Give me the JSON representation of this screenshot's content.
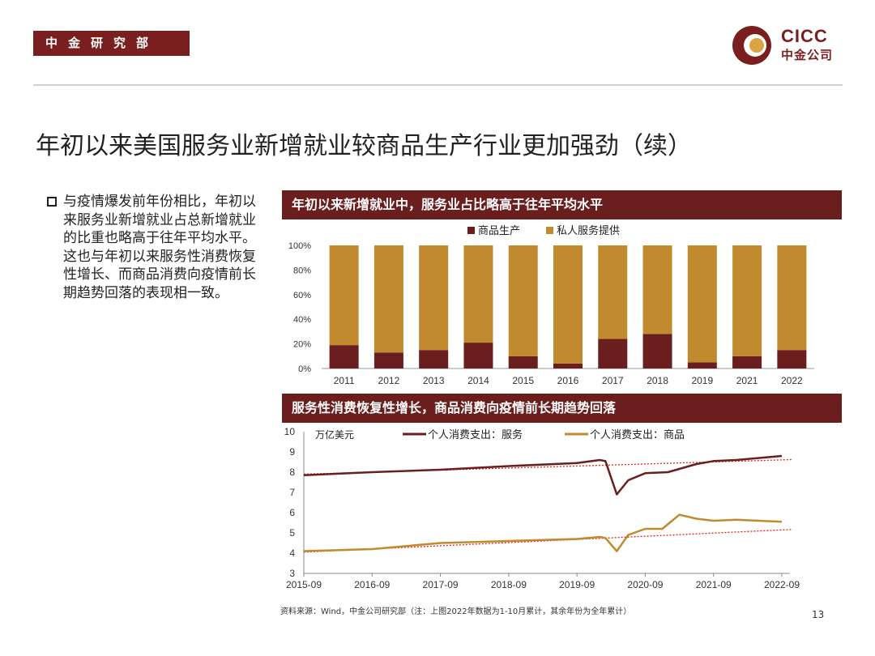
{
  "header": {
    "dept": "中金研究部",
    "logo_en": "CICC",
    "logo_cn": "中金公司"
  },
  "title": "年初以来美国服务业新增就业较商品生产行业更加强劲（续）",
  "bullet": "与疫情爆发前年份相比，年初以来服务业新增就业占总新增就业的比重也略高于往年平均水平。这也与年初以来服务性消费恢复性增长、而商品消费向疫情前长期趋势回落的表现相一致。",
  "panels": {
    "top_title": "年初以来新增就业中，服务业占比略高于往年平均水平",
    "bottom_title": "服务性消费恢复性增长，商品消费向疫情前长期趋势回落"
  },
  "colors": {
    "brand": "#7a1f1f",
    "goods": "#6b1e1e",
    "services": "#c28a2e",
    "trend": "#e0201a"
  },
  "chart_data": [
    {
      "type": "bar",
      "stacked": true,
      "categories": [
        "2011",
        "2012",
        "2013",
        "2014",
        "2015",
        "2016",
        "2017",
        "2018",
        "2019",
        "2021",
        "2022"
      ],
      "series": [
        {
          "name": "商品生产",
          "values": [
            19,
            13,
            15,
            21,
            10,
            4,
            24,
            28,
            5,
            10,
            15
          ]
        },
        {
          "name": "私人服务提供",
          "values": [
            81,
            87,
            85,
            79,
            90,
            96,
            76,
            72,
            95,
            90,
            85
          ]
        }
      ],
      "yticks": [
        "0%",
        "20%",
        "40%",
        "60%",
        "80%",
        "100%"
      ],
      "ylim": [
        0,
        100
      ],
      "legend": "top-center"
    },
    {
      "type": "line",
      "ylabel": "万亿美元",
      "ylim": [
        3,
        10
      ],
      "yticks": [
        "3",
        "4",
        "5",
        "6",
        "7",
        "8",
        "9",
        "10"
      ],
      "xticks": [
        "2015-09",
        "2016-09",
        "2017-09",
        "2018-09",
        "2019-09",
        "2020-09",
        "2021-09",
        "2022-09"
      ],
      "series": [
        {
          "name": "个人消费支出：服务",
          "points": [
            [
              "2015-09",
              7.85
            ],
            [
              "2016-09",
              8.0
            ],
            [
              "2017-09",
              8.12
            ],
            [
              "2018-09",
              8.3
            ],
            [
              "2019-09",
              8.45
            ],
            [
              "2020-01",
              8.6
            ],
            [
              "2020-02",
              8.55
            ],
            [
              "2020-04",
              6.9
            ],
            [
              "2020-06",
              7.6
            ],
            [
              "2020-09",
              7.95
            ],
            [
              "2021-01",
              8.0
            ],
            [
              "2021-06",
              8.4
            ],
            [
              "2021-09",
              8.55
            ],
            [
              "2022-01",
              8.6
            ],
            [
              "2022-09",
              8.8
            ]
          ]
        },
        {
          "name": "个人消费支出：商品",
          "points": [
            [
              "2015-09",
              4.1
            ],
            [
              "2016-09",
              4.2
            ],
            [
              "2017-09",
              4.5
            ],
            [
              "2018-09",
              4.6
            ],
            [
              "2019-09",
              4.7
            ],
            [
              "2020-01",
              4.8
            ],
            [
              "2020-02",
              4.75
            ],
            [
              "2020-04",
              4.1
            ],
            [
              "2020-06",
              4.9
            ],
            [
              "2020-09",
              5.2
            ],
            [
              "2020-12",
              5.2
            ],
            [
              "2021-03",
              5.9
            ],
            [
              "2021-06",
              5.7
            ],
            [
              "2021-09",
              5.6
            ],
            [
              "2022-01",
              5.65
            ],
            [
              "2022-09",
              5.55
            ]
          ]
        }
      ],
      "trendlines": [
        {
          "series": "个人消费支出：服务",
          "from": [
            "2015-09",
            7.9
          ],
          "to": [
            "2022-09",
            8.6
          ]
        },
        {
          "series": "个人消费支出：商品",
          "from": [
            "2015-09",
            4.05
          ],
          "to": [
            "2022-09",
            5.15
          ]
        }
      ],
      "legend": "top"
    }
  ],
  "footer": {
    "source": "资料来源：Wind，中金公司研究部（注：上图2022年数据为1-10月累计，其余年份为全年累计）",
    "page": "13"
  }
}
